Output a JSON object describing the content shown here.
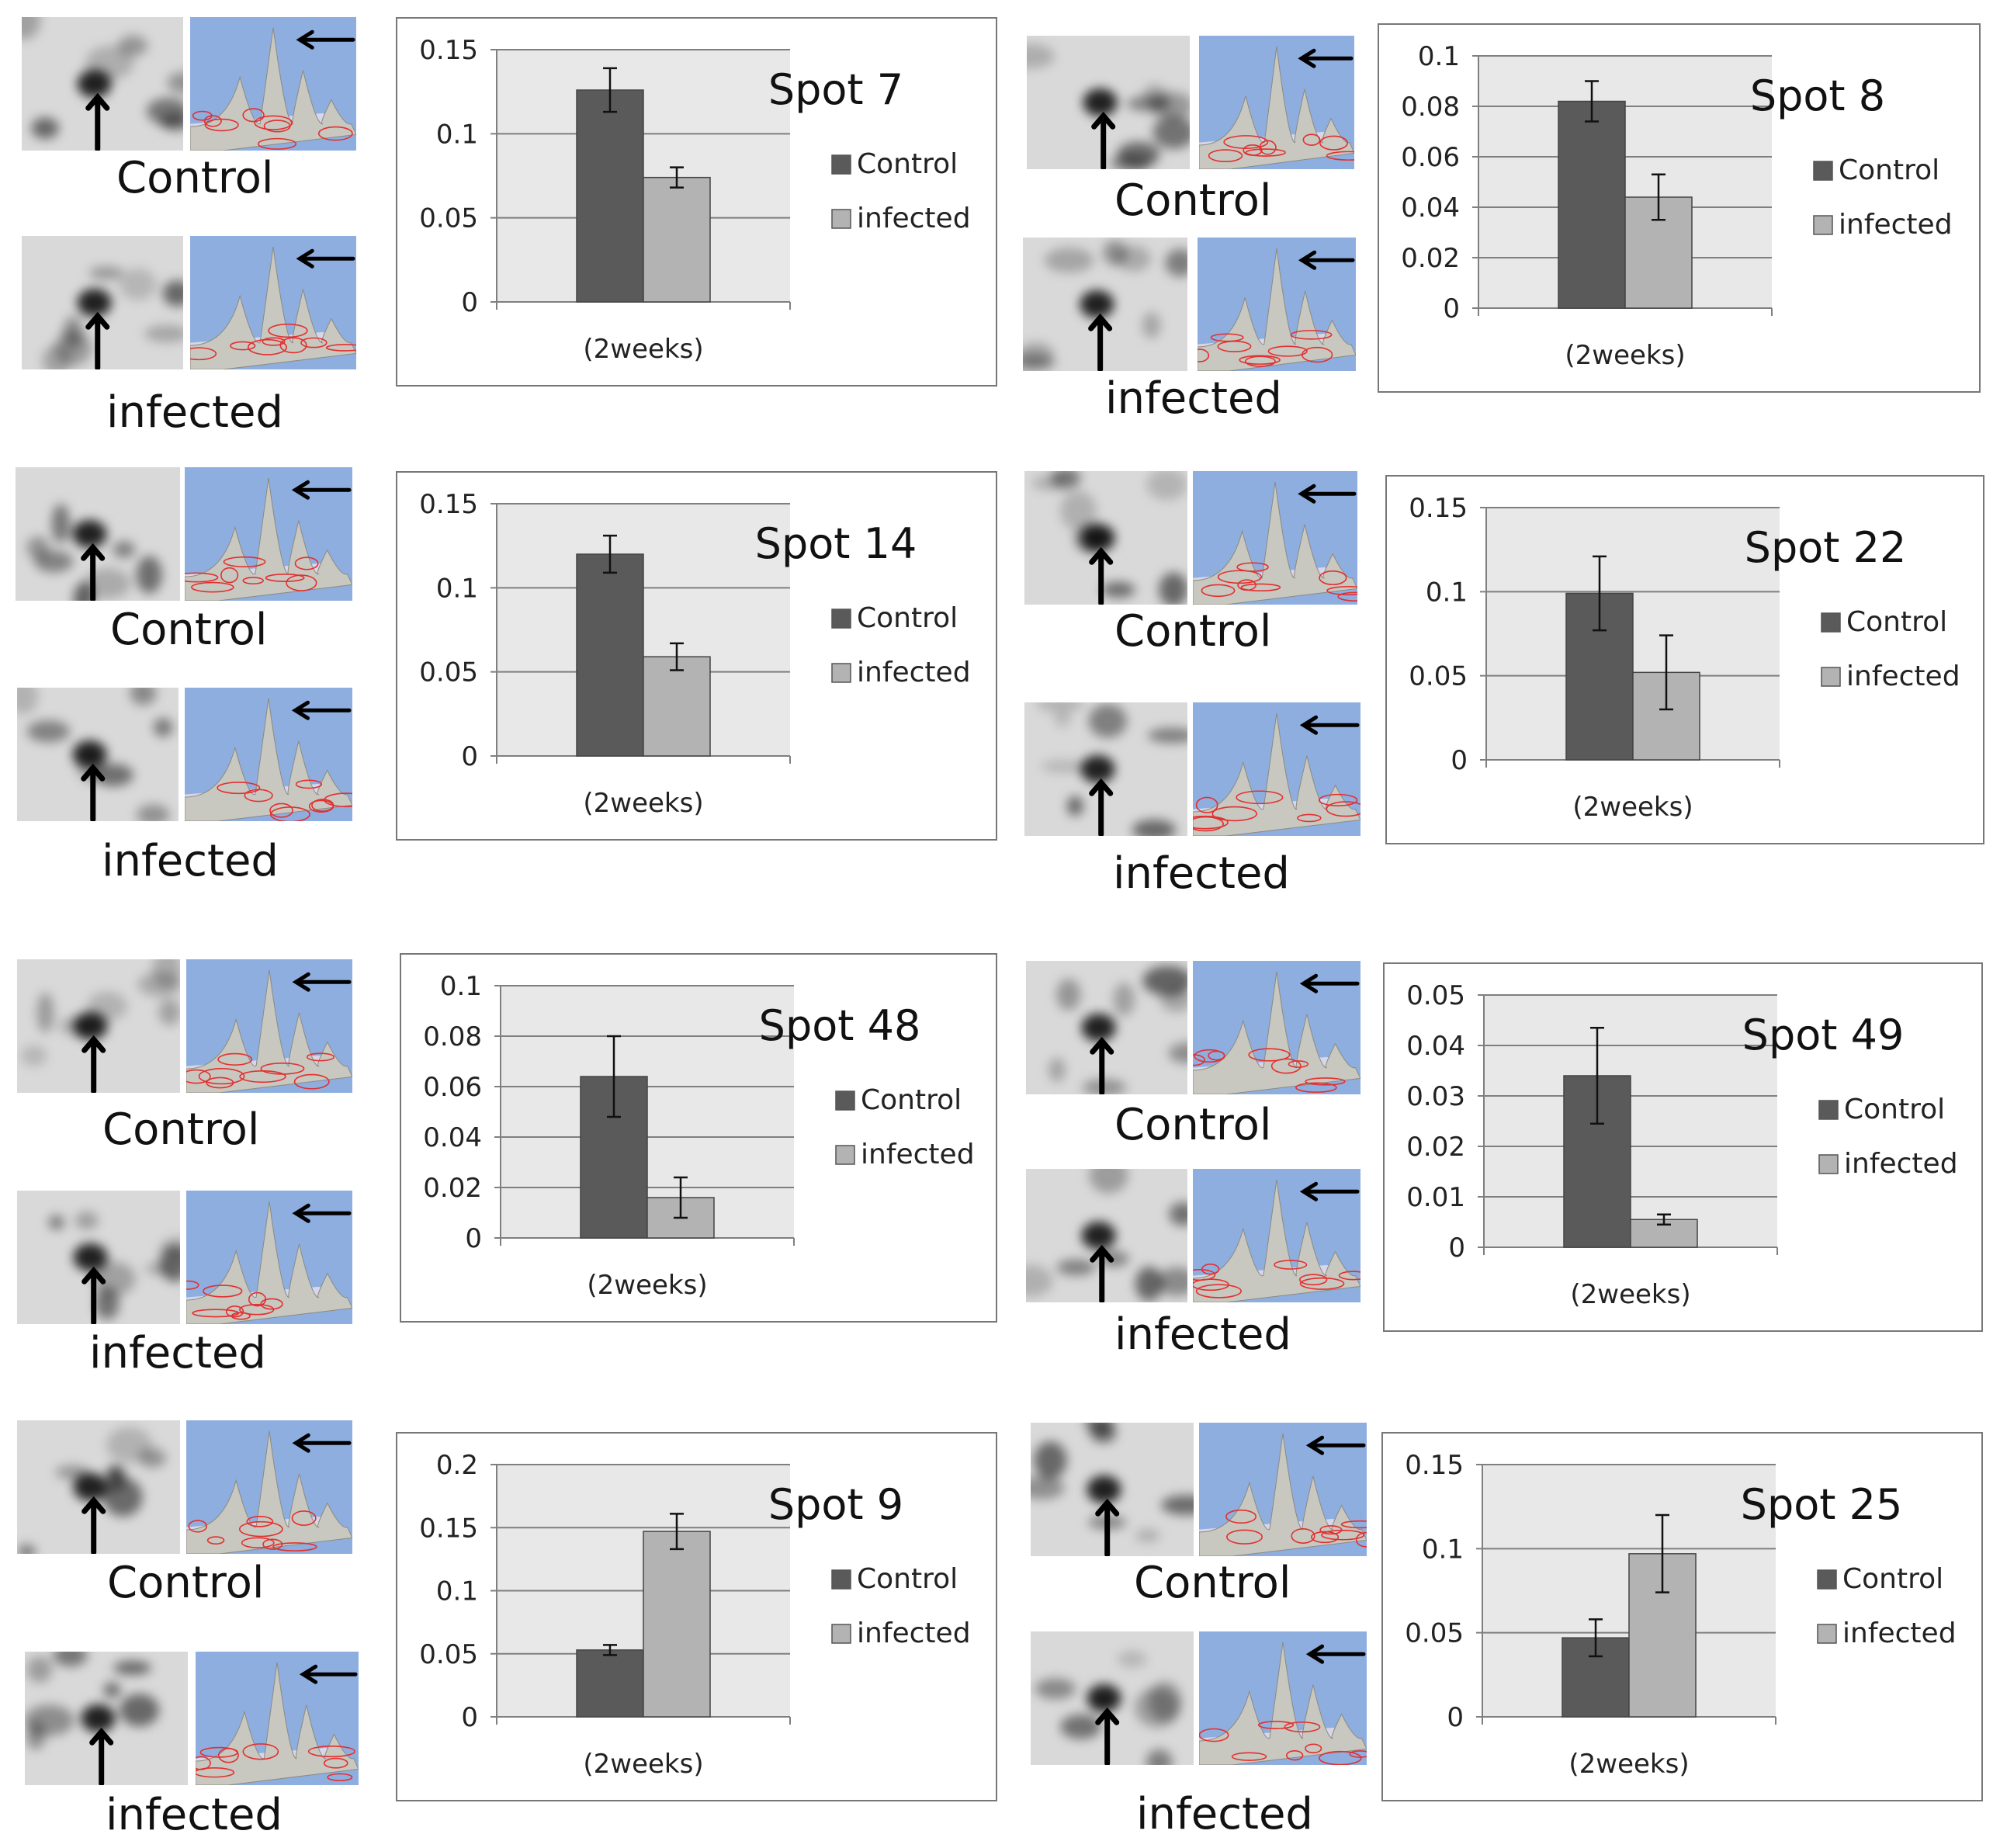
{
  "colors": {
    "control": "#5a5a5a",
    "infected": "#b3b3b3",
    "plot_bg": "#e8e8e8",
    "gridline": "#7f7f7f",
    "map_bg": "#8eaee0",
    "peak": "#c8c8c0",
    "contour": "#e23030"
  },
  "icons": [
    "arrow-up-icon",
    "arrow-left-icon"
  ],
  "panels": [
    {
      "labels": {
        "top": "Control",
        "bottom": "infected"
      },
      "chart": {
        "title": "Spot 7",
        "xlabel": "(2weeks)",
        "legend": [
          "Control",
          "infected"
        ],
        "yticks": [
          "0",
          "0.05",
          "0.1",
          "0.15"
        ]
      }
    },
    {
      "labels": {
        "top": "Control",
        "bottom": "infected"
      },
      "chart": {
        "title": "Spot 8",
        "xlabel": "(2weeks)",
        "legend": [
          "Control",
          "infected"
        ],
        "yticks": [
          "0",
          "0.02",
          "0.04",
          "0.06",
          "0.08",
          "0.1"
        ]
      }
    },
    {
      "labels": {
        "top": "Control",
        "bottom": "infected"
      },
      "chart": {
        "title": "Spot 14",
        "xlabel": "(2weeks)",
        "legend": [
          "Control",
          "infected"
        ],
        "yticks": [
          "0",
          "0.05",
          "0.1",
          "0.15"
        ]
      }
    },
    {
      "labels": {
        "top": "Control",
        "bottom": "infected"
      },
      "chart": {
        "title": "Spot 22",
        "xlabel": "(2weeks)",
        "legend": [
          "Control",
          "infected"
        ],
        "yticks": [
          "0",
          "0.05",
          "0.1",
          "0.15"
        ]
      }
    },
    {
      "labels": {
        "top": "Control",
        "bottom": "infected"
      },
      "chart": {
        "title": "Spot 48",
        "xlabel": "(2weeks)",
        "legend": [
          "Control",
          "infected"
        ],
        "yticks": [
          "0",
          "0.02",
          "0.04",
          "0.06",
          "0.08",
          "0.1"
        ]
      }
    },
    {
      "labels": {
        "top": "Control",
        "bottom": "infected"
      },
      "chart": {
        "title": "Spot 49",
        "xlabel": "(2weeks)",
        "legend": [
          "Control",
          "infected"
        ],
        "yticks": [
          "0",
          "0.01",
          "0.02",
          "0.03",
          "0.04",
          "0.05"
        ]
      }
    },
    {
      "labels": {
        "top": "Control",
        "bottom": "infected"
      },
      "chart": {
        "title": "Spot 9",
        "xlabel": "(2weeks)",
        "legend": [
          "Control",
          "infected"
        ],
        "yticks": [
          "0",
          "0.05",
          "0.1",
          "0.15",
          "0.2"
        ]
      }
    },
    {
      "labels": {
        "top": "Control",
        "bottom": "infected"
      },
      "chart": {
        "title": "Spot 25",
        "xlabel": "(2weeks)",
        "legend": [
          "Control",
          "infected"
        ],
        "yticks": [
          "0",
          "0.05",
          "0.1",
          "0.15"
        ]
      }
    }
  ],
  "chart_data": [
    {
      "type": "bar",
      "title": "Spot 7",
      "xlabel": "(2weeks)",
      "ylabel": "",
      "categories": [
        "(2weeks)"
      ],
      "ylim": [
        0,
        0.15
      ],
      "grid": true,
      "legend": "right",
      "series": [
        {
          "name": "Control",
          "values": [
            0.126
          ],
          "error": [
            0.013
          ]
        },
        {
          "name": "infected",
          "values": [
            0.074
          ],
          "error": [
            0.006
          ]
        }
      ]
    },
    {
      "type": "bar",
      "title": "Spot 8",
      "xlabel": "(2weeks)",
      "ylabel": "",
      "categories": [
        "(2weeks)"
      ],
      "ylim": [
        0,
        0.1
      ],
      "grid": true,
      "legend": "right",
      "series": [
        {
          "name": "Control",
          "values": [
            0.082
          ],
          "error": [
            0.008
          ]
        },
        {
          "name": "infected",
          "values": [
            0.044
          ],
          "error": [
            0.009
          ]
        }
      ]
    },
    {
      "type": "bar",
      "title": "Spot 14",
      "xlabel": "(2weeks)",
      "ylabel": "",
      "categories": [
        "(2weeks)"
      ],
      "ylim": [
        0,
        0.15
      ],
      "grid": true,
      "legend": "right",
      "series": [
        {
          "name": "Control",
          "values": [
            0.12
          ],
          "error": [
            0.011
          ]
        },
        {
          "name": "infected",
          "values": [
            0.059
          ],
          "error": [
            0.008
          ]
        }
      ]
    },
    {
      "type": "bar",
      "title": "Spot 22",
      "xlabel": "(2weeks)",
      "ylabel": "",
      "categories": [
        "(2weeks)"
      ],
      "ylim": [
        0,
        0.15
      ],
      "grid": true,
      "legend": "right",
      "series": [
        {
          "name": "Control",
          "values": [
            0.099
          ],
          "error": [
            0.022
          ]
        },
        {
          "name": "infected",
          "values": [
            0.052
          ],
          "error": [
            0.022
          ]
        }
      ]
    },
    {
      "type": "bar",
      "title": "Spot 48",
      "xlabel": "(2weeks)",
      "ylabel": "",
      "categories": [
        "(2weeks)"
      ],
      "ylim": [
        0,
        0.1
      ],
      "grid": true,
      "legend": "right",
      "series": [
        {
          "name": "Control",
          "values": [
            0.064
          ],
          "error": [
            0.016
          ]
        },
        {
          "name": "infected",
          "values": [
            0.016
          ],
          "error": [
            0.008
          ]
        }
      ]
    },
    {
      "type": "bar",
      "title": "Spot 49",
      "xlabel": "(2weeks)",
      "ylabel": "",
      "categories": [
        "(2weeks)"
      ],
      "ylim": [
        0,
        0.05
      ],
      "grid": true,
      "legend": "right",
      "series": [
        {
          "name": "Control",
          "values": [
            0.034
          ],
          "error": [
            0.0095
          ]
        },
        {
          "name": "infected",
          "values": [
            0.0055
          ],
          "error": [
            0.001
          ]
        }
      ]
    },
    {
      "type": "bar",
      "title": "Spot 9",
      "xlabel": "(2weeks)",
      "ylabel": "",
      "categories": [
        "(2weeks)"
      ],
      "ylim": [
        0,
        0.2
      ],
      "grid": true,
      "legend": "right",
      "series": [
        {
          "name": "Control",
          "values": [
            0.053
          ],
          "error": [
            0.004
          ]
        },
        {
          "name": "infected",
          "values": [
            0.147
          ],
          "error": [
            0.014
          ]
        }
      ]
    },
    {
      "type": "bar",
      "title": "Spot 25",
      "xlabel": "(2weeks)",
      "ylabel": "",
      "categories": [
        "(2weeks)"
      ],
      "ylim": [
        0,
        0.15
      ],
      "grid": true,
      "legend": "right",
      "series": [
        {
          "name": "Control",
          "values": [
            0.047
          ],
          "error": [
            0.011
          ]
        },
        {
          "name": "infected",
          "values": [
            0.097
          ],
          "error": [
            0.023
          ]
        }
      ]
    }
  ]
}
